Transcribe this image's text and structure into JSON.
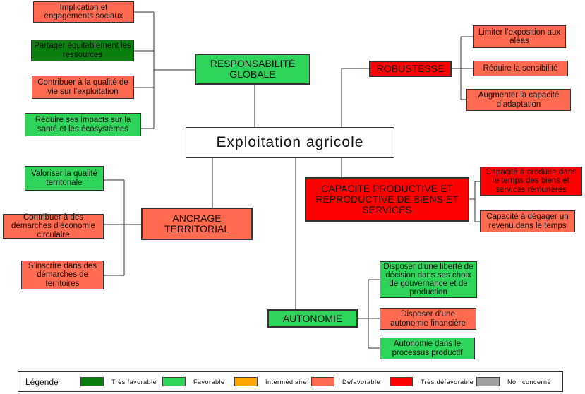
{
  "colors": {
    "tres_favorable": "#0a7f10",
    "favorable": "#2ed35a",
    "intermediaire": "#ffa500",
    "defavorable": "#ff6a50",
    "tres_defavorable": "#ff0000",
    "non_concerne": "#a0a0a0"
  },
  "root": {
    "label": "Exploitation agricole"
  },
  "responsabilite": {
    "label": "RESPONSABILITÉ GLOBALE",
    "items": [
      "Implication et engagements sociaux",
      "Partager équitablement les ressources",
      "Contribuer à la qualité de vie sur l’exploitation",
      "Réduire ses impacts sur la santé et les écosystèmes"
    ]
  },
  "robustesse": {
    "label": "ROBUSTESSE",
    "items": [
      "Limiter l’exposition aux aléas",
      "Réduire la sensibilité",
      "Augmenter la capacité d’adaptation"
    ]
  },
  "capacite": {
    "label": "CAPACITE PRODUCTIVE ET REPRODUCTIVE DE BIENS ET SERVICES",
    "items": [
      "Capacité à produire dans le temps des biens et services rémunérés",
      "Capacité à dégager un revenu dans le temps"
    ]
  },
  "ancrage": {
    "label": "ANCRAGE TERRITORIAL",
    "items": [
      "Valoriser la qualité territoriale",
      "Contribuer à des démarches d’économie circulaire",
      "S’inscrire dans des démarches de territoires"
    ]
  },
  "autonomie": {
    "label": "AUTONOMIE",
    "items": [
      "Disposer d’une liberté de décision dans ses choix de gouvernance et de production",
      "Disposer d’une autonomie financière",
      "Autonomie dans le processus productif"
    ]
  },
  "legend": {
    "title": "Légende",
    "items": [
      "Très favorable",
      "Favorable",
      "Intermédiaire",
      "Défavorable",
      "Très défavorable",
      "Non concerné"
    ]
  }
}
